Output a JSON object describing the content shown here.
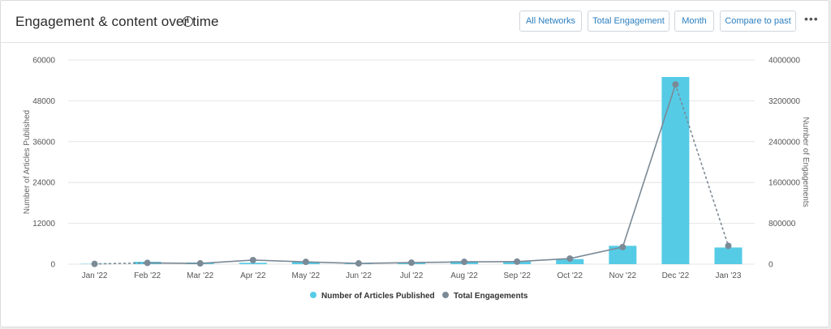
{
  "header": {
    "title": "Engagement & content over time",
    "info_icon": "info-icon",
    "buttons": {
      "networks": "All Networks",
      "engagement": "Total Engagement",
      "period": "Month",
      "compare": "Compare to past"
    },
    "more_icon": "more-horizontal-icon",
    "more_glyph": "•••"
  },
  "colors": {
    "bar": "#56cbe6",
    "line": "#7b8a96",
    "grid": "#e4e4e4",
    "button_text": "#2a7fc0"
  },
  "chart_data": {
    "type": "bar",
    "categories": [
      "Jan '22",
      "Feb '22",
      "Mar '22",
      "Apr '22",
      "May '22",
      "Jun '22",
      "Jul '22",
      "Aug '22",
      "Sep '22",
      "Oct '22",
      "Nov '22",
      "Dec '22",
      "Jan '23"
    ],
    "series": [
      {
        "name": "Number of Articles Published",
        "type": "bar",
        "axis": "left",
        "values": [
          100,
          700,
          500,
          400,
          700,
          300,
          600,
          900,
          800,
          1500,
          5400,
          55000,
          4900
        ]
      },
      {
        "name": "Total Engagements",
        "type": "line",
        "axis": "right",
        "values": [
          5000,
          25000,
          15000,
          80000,
          45000,
          15000,
          30000,
          45000,
          50000,
          110000,
          335000,
          3520000,
          360000
        ],
        "dotted_segments": [
          0,
          11
        ]
      }
    ],
    "y_left": {
      "label": "Number of Articles Published",
      "ylim": [
        0,
        60000
      ],
      "ticks": [
        "0",
        "12000",
        "24000",
        "36000",
        "48000",
        "60000"
      ]
    },
    "y_right": {
      "label": "Number of Engagements",
      "ylim": [
        0,
        4000000
      ],
      "ticks": [
        "0",
        "800000",
        "1600000",
        "2400000",
        "3200000",
        "4000000"
      ]
    },
    "grid": true,
    "legend": "bottom-center"
  }
}
